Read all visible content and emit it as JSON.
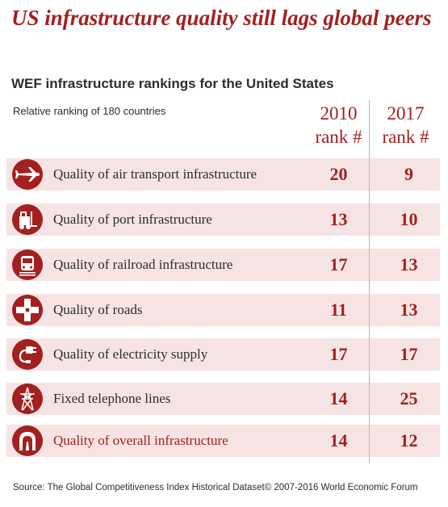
{
  "title": "US infrastructure quality still lags global peers",
  "subtitle": "WEF infrastructure rankings for the United States",
  "relative_note": "Relative ranking of 180 countries",
  "col2010": {
    "year": "2010",
    "label": "rank #"
  },
  "col2017": {
    "year": "2017",
    "label": "rank #"
  },
  "colors": {
    "accent": "#a32020",
    "row_bg": "#f6e4e4",
    "text": "#2d2d2d"
  },
  "rows": [
    {
      "icon": "airplane-icon",
      "label": "Quality of air transport infrastructure",
      "r2010": "20",
      "r2017": "9"
    },
    {
      "icon": "forklift-icon",
      "label": "Quality of port infrastructure",
      "r2010": "13",
      "r2017": "10"
    },
    {
      "icon": "train-icon",
      "label": "Quality of railroad infrastructure",
      "r2010": "17",
      "r2017": "13"
    },
    {
      "icon": "road-intersection-icon",
      "label": "Quality of roads",
      "r2010": "11",
      "r2017": "13"
    },
    {
      "icon": "electric-plug-icon",
      "label": "Quality of electricity supply",
      "r2010": "17",
      "r2017": "17"
    },
    {
      "icon": "transmission-tower-icon",
      "label": "Fixed telephone lines",
      "r2010": "14",
      "r2017": "25"
    },
    {
      "icon": "tunnel-icon",
      "label": "Quality of overall infrastructure",
      "r2010": "14",
      "r2017": "12"
    }
  ],
  "source": "Source: The Global Competitiveness Index Historical Dataset© 2007-2016 World Economic Forum",
  "chart_data": {
    "type": "table",
    "title": "US infrastructure quality still lags global peers",
    "subtitle": "WEF infrastructure rankings for the United States",
    "columns": [
      "2010 rank #",
      "2017 rank #"
    ],
    "categories": [
      "Quality of air transport infrastructure",
      "Quality of port infrastructure",
      "Quality of railroad infrastructure",
      "Quality of roads",
      "Quality of electricity supply",
      "Fixed telephone lines",
      "Quality of overall infrastructure"
    ],
    "series": [
      {
        "name": "2010 rank #",
        "values": [
          20,
          13,
          17,
          11,
          17,
          14,
          14
        ]
      },
      {
        "name": "2017 rank #",
        "values": [
          9,
          10,
          13,
          13,
          17,
          25,
          12
        ]
      }
    ]
  }
}
